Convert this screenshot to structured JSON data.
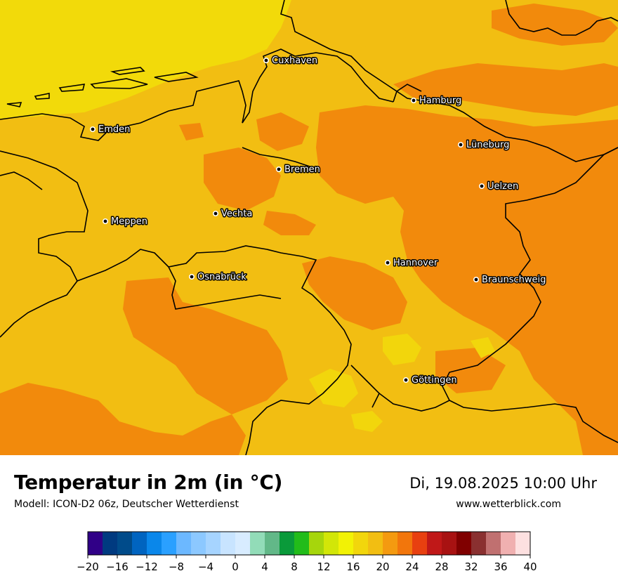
{
  "map": {
    "cities": [
      {
        "name": "Cuxhaven"
      },
      {
        "name": "Hamburg"
      },
      {
        "name": "Emden"
      },
      {
        "name": "Lüneburg"
      },
      {
        "name": "Bremen"
      },
      {
        "name": "Uelzen"
      },
      {
        "name": "Vechta"
      },
      {
        "name": "Meppen"
      },
      {
        "name": "Hannover"
      },
      {
        "name": "Osnabrück"
      },
      {
        "name": "Braunschweig"
      },
      {
        "name": "Göttingen"
      }
    ],
    "colors": {
      "sea": "#f2da0a",
      "temp_16_18": "#f2d60c",
      "temp_18_20": "#f2be12",
      "temp_20_22": "#f49a10",
      "temp_22_24": "#f28a0c",
      "borders": "#000000"
    }
  },
  "footer": {
    "title": "Temperatur in 2m (in °C)",
    "subtitle": "Modell: ICON-D2 06z, Deutscher Wetterdienst",
    "datetime": "Di, 19.08.2025 10:00 Uhr",
    "website": "www.wetterblick.com"
  },
  "legend": {
    "tick_labels": [
      "−20",
      "−16",
      "−12",
      "−8",
      "−4",
      "0",
      "4",
      "8",
      "12",
      "16",
      "20",
      "24",
      "28",
      "32",
      "36",
      "40"
    ],
    "colors": [
      "#300087",
      "#003a80",
      "#004b8a",
      "#0064c0",
      "#0a87ea",
      "#2aa0ff",
      "#6cb8ff",
      "#8cc8ff",
      "#a6d4ff",
      "#c8e4ff",
      "#d8ecff",
      "#92dcb8",
      "#62b888",
      "#0a9a3a",
      "#22bc1a",
      "#a6d60c",
      "#d2e608",
      "#f2f205",
      "#f2d60c",
      "#f2be12",
      "#f49a10",
      "#f2760c",
      "#e84010",
      "#c01818",
      "#a81212",
      "#800000",
      "#8a3030",
      "#c07070",
      "#f0b0b0",
      "#fde0e0"
    ]
  }
}
